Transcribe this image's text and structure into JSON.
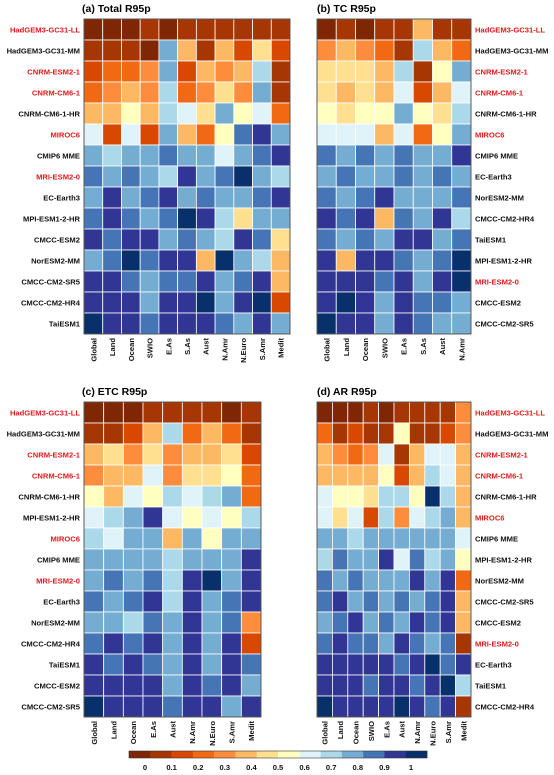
{
  "colors": {
    "scale": [
      "#7f2704",
      "#a63603",
      "#d94801",
      "#f16913",
      "#fd8d3c",
      "#fdb863",
      "#fee090",
      "#ffffbf",
      "#e0f3f8",
      "#abd9e9",
      "#74add1",
      "#4575b4",
      "#313695",
      "#08306b"
    ],
    "highlight_label": "#e31a1c",
    "normal_label": "#111111"
  },
  "colorbar": {
    "ticks": [
      "0",
      "0.1",
      "0.2",
      "0.3",
      "0.4",
      "0.5",
      "0.6",
      "0.7",
      "0.8",
      "0.9",
      "1"
    ]
  },
  "chart_data": [
    {
      "type": "heatmap",
      "title": "(a) Total R95p",
      "label_side": "left",
      "x_categories": [
        "Global",
        "Land",
        "Ocean",
        "SWIO",
        "E.As",
        "S.As",
        "Aust",
        "N.Amr",
        "N.Euro",
        "S.Amr",
        "Medit"
      ],
      "rows": [
        "HadGEM3-GC31-LL",
        "HadGEM3-GC31-MM",
        "CNRM-ESM2-1",
        "CNRM-CM6-1",
        "CNRM-CM6-1-HR",
        "MIROC6",
        "CMIP6 MME",
        "MRI-ESM2-0",
        "EC-Earth3",
        "MPI-ESM1-2-HR",
        "CMCC-ESM2",
        "NorESM2-MM",
        "CMCC-CM2-SR5",
        "CMCC-CM2-HR4",
        "TaiESM1"
      ],
      "highlight_rows": [
        "HadGEM3-GC31-LL",
        "CNRM-ESM2-1",
        "CNRM-CM6-1",
        "MIROC6",
        "MRI-ESM2-0"
      ],
      "values": [
        [
          0.02,
          0.03,
          0.02,
          0.05,
          0.02,
          0.05,
          0.05,
          0.04,
          0.08,
          0.05,
          0.06
        ],
        [
          0.08,
          0.05,
          0.07,
          0.03,
          0.8,
          0.4,
          0.1,
          0.4,
          0.12,
          0.45,
          0.12
        ],
        [
          0.15,
          0.2,
          0.2,
          0.3,
          0.8,
          0.15,
          0.4,
          0.3,
          0.4,
          0.7,
          0.05
        ],
        [
          0.25,
          0.3,
          0.35,
          0.3,
          0.7,
          0.2,
          0.3,
          0.45,
          0.3,
          0.8,
          0.1
        ],
        [
          0.35,
          0.4,
          0.5,
          0.4,
          0.7,
          0.6,
          0.45,
          0.75,
          0.55,
          0.6,
          0.2
        ],
        [
          0.6,
          0.15,
          0.65,
          0.15,
          0.8,
          0.4,
          0.2,
          0.5,
          0.85,
          0.9,
          0.75
        ],
        [
          0.75,
          0.7,
          0.8,
          0.8,
          0.85,
          0.8,
          0.75,
          0.65,
          0.8,
          0.85,
          0.95
        ],
        [
          0.85,
          0.8,
          0.85,
          0.8,
          0.7,
          0.9,
          0.75,
          0.85,
          1.0,
          0.8,
          0.7
        ],
        [
          0.8,
          0.9,
          0.75,
          0.85,
          0.9,
          0.8,
          0.85,
          0.8,
          0.75,
          0.85,
          0.9
        ],
        [
          0.85,
          0.95,
          0.85,
          0.8,
          0.85,
          1.0,
          0.95,
          0.7,
          0.45,
          0.8,
          0.75
        ],
        [
          0.9,
          0.85,
          0.9,
          0.95,
          0.8,
          0.85,
          0.8,
          0.7,
          0.95,
          0.85,
          0.45
        ],
        [
          0.8,
          0.85,
          1.0,
          0.85,
          0.9,
          0.9,
          0.4,
          1.0,
          0.75,
          0.7,
          0.4
        ],
        [
          0.9,
          0.95,
          0.85,
          0.75,
          0.85,
          0.85,
          0.9,
          0.75,
          0.85,
          0.95,
          0.35
        ],
        [
          0.95,
          0.9,
          0.95,
          0.8,
          0.9,
          0.9,
          1.0,
          0.8,
          0.9,
          1.0,
          0.15
        ],
        [
          1.0,
          0.95,
          0.9,
          0.85,
          0.95,
          0.9,
          0.9,
          0.85,
          0.75,
          0.9,
          0.8
        ]
      ]
    },
    {
      "type": "heatmap",
      "title": "(b) TC R95p",
      "label_side": "right",
      "x_categories": [
        "Global",
        "Land",
        "Ocean",
        "SWIO",
        "E.As",
        "S.As",
        "Aust",
        "N.Amr"
      ],
      "rows": [
        "HadGEM3-GC31-LL",
        "HadGEM3-GC31-MM",
        "CNRM-ESM2-1",
        "CNRM-CM6-1",
        "CNRM-CM6-1-HR",
        "MIROC6",
        "CMIP6 MME",
        "EC-Earth3",
        "NorESM2-MM",
        "CMCC-CM2-HR4",
        "TaiESM1",
        "MPI-ESM1-2-HR",
        "MRI-ESM2-0",
        "CMCC-ESM2",
        "CMCC-CM2-SR5"
      ],
      "highlight_rows": [
        "HadGEM3-GC31-LL",
        "CNRM-ESM2-1",
        "CNRM-CM6-1",
        "MIROC6",
        "MRI-ESM2-0"
      ],
      "values": [
        [
          0.02,
          0.05,
          0.03,
          0.05,
          0.05,
          0.4,
          0.1,
          0.05
        ],
        [
          0.3,
          0.35,
          0.3,
          0.25,
          0.1,
          0.7,
          0.35,
          0.25
        ],
        [
          0.45,
          0.45,
          0.45,
          0.4,
          0.7,
          0.1,
          0.5,
          0.75
        ],
        [
          0.45,
          0.4,
          0.45,
          0.35,
          0.6,
          0.15,
          0.4,
          0.65
        ],
        [
          0.5,
          0.45,
          0.5,
          0.5,
          0.75,
          0.55,
          0.45,
          0.7
        ],
        [
          0.65,
          0.65,
          0.6,
          0.35,
          0.65,
          0.25,
          0.5,
          0.75
        ],
        [
          0.85,
          0.8,
          0.85,
          0.8,
          0.85,
          0.8,
          0.75,
          0.9
        ],
        [
          0.8,
          0.85,
          0.8,
          0.75,
          0.85,
          0.8,
          0.85,
          0.75
        ],
        [
          0.85,
          0.8,
          0.85,
          0.9,
          0.8,
          0.75,
          0.8,
          0.85
        ],
        [
          0.9,
          0.85,
          0.9,
          0.4,
          0.85,
          0.8,
          0.9,
          0.7
        ],
        [
          0.85,
          0.8,
          0.85,
          0.8,
          0.9,
          0.95,
          0.75,
          0.85
        ],
        [
          0.9,
          0.4,
          0.9,
          0.95,
          0.85,
          0.8,
          0.85,
          1.0
        ],
        [
          0.9,
          0.95,
          0.9,
          0.85,
          0.95,
          0.8,
          0.9,
          1.0
        ],
        [
          0.95,
          1.0,
          0.95,
          0.75,
          0.9,
          0.85,
          0.85,
          0.8
        ],
        [
          1.0,
          0.9,
          0.95,
          0.8,
          0.95,
          0.85,
          0.8,
          0.75
        ]
      ]
    },
    {
      "type": "heatmap",
      "title": "(c) ETC R95p",
      "label_side": "left",
      "x_categories": [
        "Global",
        "Land",
        "Ocean",
        "E.As",
        "Aust",
        "N.Amr",
        "N.Euro",
        "S.Amr",
        "Medit"
      ],
      "rows": [
        "HadGEM3-GC31-LL",
        "HadGEM3-GC31-MM",
        "CNRM-ESM2-1",
        "CNRM-CM6-1",
        "CNRM-CM6-1-HR",
        "MPI-ESM1-2-HR",
        "MIROC6",
        "CMIP6 MME",
        "MRI-ESM2-0",
        "EC-Earth3",
        "NorESM2-MM",
        "CMCC-CM2-HR4",
        "TaiESM1",
        "CMCC-ESM2",
        "CMCC-CM2-SR5"
      ],
      "highlight_rows": [
        "HadGEM3-GC31-LL",
        "CNRM-ESM2-1",
        "CNRM-CM6-1",
        "MIROC6",
        "MRI-ESM2-0"
      ],
      "values": [
        [
          0.02,
          0.03,
          0.03,
          0.05,
          0.05,
          0.05,
          0.08,
          0.03,
          0.05
        ],
        [
          0.1,
          0.08,
          0.15,
          0.4,
          0.7,
          0.25,
          0.35,
          0.2,
          0.1
        ],
        [
          0.35,
          0.45,
          0.3,
          0.45,
          0.3,
          0.35,
          0.4,
          0.45,
          0.15
        ],
        [
          0.3,
          0.4,
          0.4,
          0.65,
          0.3,
          0.45,
          0.45,
          0.5,
          0.2
        ],
        [
          0.55,
          0.4,
          0.6,
          0.5,
          0.7,
          0.6,
          0.7,
          0.75,
          0.2
        ],
        [
          0.6,
          0.7,
          0.8,
          0.95,
          0.65,
          0.5,
          0.6,
          0.55,
          0.7
        ],
        [
          0.7,
          0.65,
          0.75,
          0.75,
          0.4,
          0.8,
          0.55,
          0.75,
          0.8
        ],
        [
          0.75,
          0.75,
          0.75,
          0.75,
          0.7,
          0.8,
          0.8,
          0.75,
          0.9
        ],
        [
          0.8,
          0.85,
          0.8,
          0.85,
          0.7,
          0.9,
          1.0,
          0.8,
          0.95
        ],
        [
          0.85,
          0.8,
          0.85,
          0.9,
          0.7,
          0.9,
          0.8,
          0.85,
          0.95
        ],
        [
          0.75,
          0.8,
          0.7,
          0.85,
          0.75,
          0.9,
          0.8,
          0.85,
          0.3
        ],
        [
          0.85,
          0.9,
          0.85,
          0.95,
          0.8,
          0.9,
          0.8,
          0.95,
          0.15
        ],
        [
          0.9,
          0.85,
          0.9,
          0.85,
          0.75,
          0.95,
          0.8,
          0.9,
          0.85
        ],
        [
          0.95,
          0.9,
          0.9,
          0.95,
          0.8,
          0.9,
          0.85,
          0.95,
          0.8
        ],
        [
          1.0,
          0.95,
          0.9,
          0.9,
          0.85,
          0.95,
          0.9,
          0.8,
          0.95
        ]
      ]
    },
    {
      "type": "heatmap",
      "title": "(d) AR R95p",
      "label_side": "right",
      "x_categories": [
        "Global",
        "Land",
        "Ocean",
        "SWIO",
        "E.As",
        "Aust",
        "N.Amr",
        "N.Euro",
        "S.Amr",
        "Medit"
      ],
      "rows": [
        "HadGEM3-GC31-LL",
        "HadGEM3-GC31-MM",
        "CNRM-ESM2-1",
        "CNRM-CM6-1",
        "CNRM-CM6-1-HR",
        "MIROC6",
        "CMIP6 MME",
        "MPI-ESM1-2-HR",
        "NorESM2-MM",
        "CMCC-CM2-SR5",
        "CMCC-ESM2",
        "MRI-ESM2-0",
        "EC-Earth3",
        "TaiESM1",
        "CMCC-CM2-HR4"
      ],
      "highlight_rows": [
        "HadGEM3-GC31-LL",
        "CNRM-ESM2-1",
        "CNRM-CM6-1",
        "MIROC6",
        "MRI-ESM2-0"
      ],
      "values": [
        [
          0.02,
          0.03,
          0.02,
          0.05,
          0.03,
          0.04,
          0.04,
          0.05,
          0.05,
          0.3
        ],
        [
          0.2,
          0.1,
          0.15,
          0.1,
          0.05,
          0.5,
          0.1,
          0.1,
          0.15,
          0.3
        ],
        [
          0.35,
          0.3,
          0.25,
          0.3,
          0.6,
          0.1,
          0.4,
          0.65,
          0.6,
          0.35
        ],
        [
          0.4,
          0.35,
          0.35,
          0.4,
          0.55,
          0.15,
          0.35,
          0.7,
          0.65,
          0.35
        ],
        [
          0.65,
          0.55,
          0.55,
          0.45,
          0.7,
          0.7,
          0.55,
          1.0,
          0.7,
          0.4
        ],
        [
          0.6,
          0.45,
          0.65,
          0.15,
          0.7,
          0.3,
          0.6,
          0.7,
          0.75,
          0.4
        ],
        [
          0.75,
          0.8,
          0.7,
          0.75,
          0.8,
          0.8,
          0.75,
          0.8,
          0.8,
          0.6
        ],
        [
          0.7,
          0.85,
          0.75,
          0.8,
          0.9,
          0.6,
          0.85,
          0.7,
          0.75,
          0.5
        ],
        [
          0.85,
          0.8,
          0.85,
          0.75,
          0.8,
          0.75,
          0.9,
          0.75,
          0.9,
          0.2
        ],
        [
          0.85,
          0.9,
          0.8,
          0.85,
          0.8,
          0.85,
          0.8,
          0.85,
          0.9,
          0.35
        ],
        [
          0.8,
          0.85,
          0.9,
          0.8,
          0.85,
          0.8,
          0.9,
          0.85,
          0.95,
          0.4
        ],
        [
          0.85,
          0.9,
          0.85,
          0.85,
          0.8,
          0.9,
          0.85,
          0.8,
          0.85,
          0.1
        ],
        [
          0.9,
          0.95,
          0.9,
          0.95,
          0.95,
          0.85,
          0.9,
          1.0,
          0.85,
          0.95
        ],
        [
          0.95,
          0.9,
          0.95,
          0.85,
          0.9,
          0.95,
          0.85,
          0.9,
          1.0,
          0.7
        ],
        [
          1.0,
          0.95,
          0.95,
          0.9,
          0.95,
          1.0,
          0.95,
          0.85,
          0.95,
          0.05
        ]
      ]
    }
  ]
}
